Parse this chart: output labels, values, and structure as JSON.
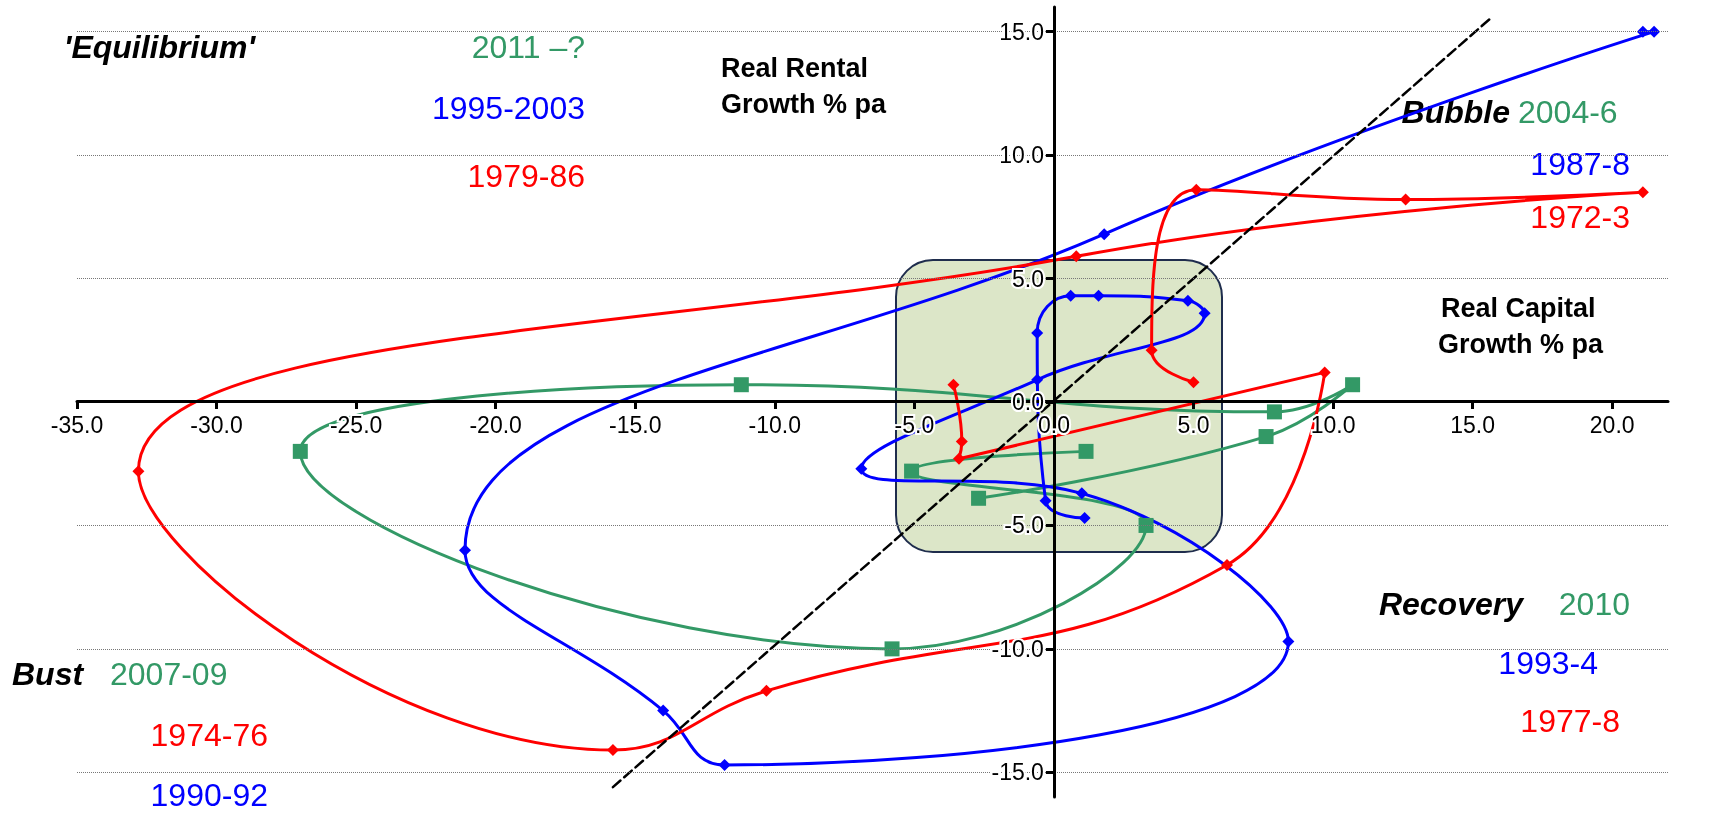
{
  "chart_data": {
    "type": "line",
    "xlabel": "Real Capital Growth % pa",
    "ylabel": "Real Rental Growth % pa",
    "xlim": [
      -35,
      22
    ],
    "xticks": [
      {
        "value": -35,
        "label": "-35.0"
      },
      {
        "value": -30,
        "label": "-30.0"
      },
      {
        "value": -25,
        "label": "-25.0"
      },
      {
        "value": -20,
        "label": "-20.0"
      },
      {
        "value": -15,
        "label": "-15.0"
      },
      {
        "value": -10,
        "label": "-10.0"
      },
      {
        "value": -5,
        "label": "-5.0"
      },
      {
        "value": 0,
        "label": "0.0"
      },
      {
        "value": 5,
        "label": "5.0"
      },
      {
        "value": 10,
        "label": "10.0"
      },
      {
        "value": 15,
        "label": "15.0"
      },
      {
        "value": 20,
        "label": "20.0"
      }
    ],
    "ylim": [
      -16,
      16
    ],
    "yticks": [
      {
        "value": -15,
        "label": "-15.0"
      },
      {
        "value": -10,
        "label": "-10.0"
      },
      {
        "value": -5,
        "label": "-5.0"
      },
      {
        "value": 0,
        "label": "0.0"
      },
      {
        "value": 5,
        "label": "5.0"
      },
      {
        "value": 10,
        "label": "10.0"
      },
      {
        "value": 15,
        "label": "15.0"
      }
    ],
    "grid": "y",
    "series": [
      {
        "color": "#339966",
        "marker": "square",
        "x": [
          -2.7,
          7.6,
          10.7,
          7.9,
          -11.2,
          -27,
          -5.8,
          3.3,
          -5.1,
          1.15
        ],
        "values": [
          -3.9,
          -1.4,
          0.7,
          -0.4,
          0.7,
          -2,
          -10,
          -5,
          -2.8,
          -2
        ]
      },
      {
        "color": "#0000ff",
        "marker": "diamond",
        "x": [
          21.1,
          21.5,
          1.8,
          -21.1,
          -14,
          -11.8,
          8.4,
          1,
          -6.9,
          -0.6,
          5.4,
          4.8,
          1.6,
          0.6,
          -0.6,
          -0.3,
          1.1
        ],
        "values": [
          15,
          15,
          6.8,
          -6,
          -12.5,
          -14.7,
          -9.7,
          -3.7,
          -2.7,
          0.9,
          3.6,
          4.1,
          4.3,
          4.3,
          2.8,
          -4,
          -4.7
        ]
      },
      {
        "color": "#ff0000",
        "marker": "diamond",
        "x": [
          5,
          3.5,
          5.1,
          12.6,
          21.1,
          0.8,
          -32.8,
          -15.8,
          -10.3,
          6.2,
          9.7,
          -3.4,
          -3.3,
          -3.6
        ],
        "values": [
          0.8,
          2.1,
          8.6,
          8.2,
          8.5,
          5.9,
          -2.8,
          -14.1,
          -11.7,
          -6.6,
          1.2,
          -2.3,
          -1.6,
          0.7
        ]
      },
      {
        "color": "#000000",
        "marker": "none",
        "line_style": "dashed",
        "x": [
          -15.8,
          15.6
        ],
        "values": [
          -15.6,
          15.5
        ]
      }
    ],
    "annotations": [
      "'Equilibrium'",
      "2011 –?",
      "1995-2003",
      "1979-86",
      "Bubble",
      "2004-6",
      "1987-8",
      "1972-3",
      "Recovery",
      "2010",
      "1993-4",
      "1977-8",
      "Bust",
      "2007-09",
      "1974-76",
      "1990-92"
    ]
  }
}
